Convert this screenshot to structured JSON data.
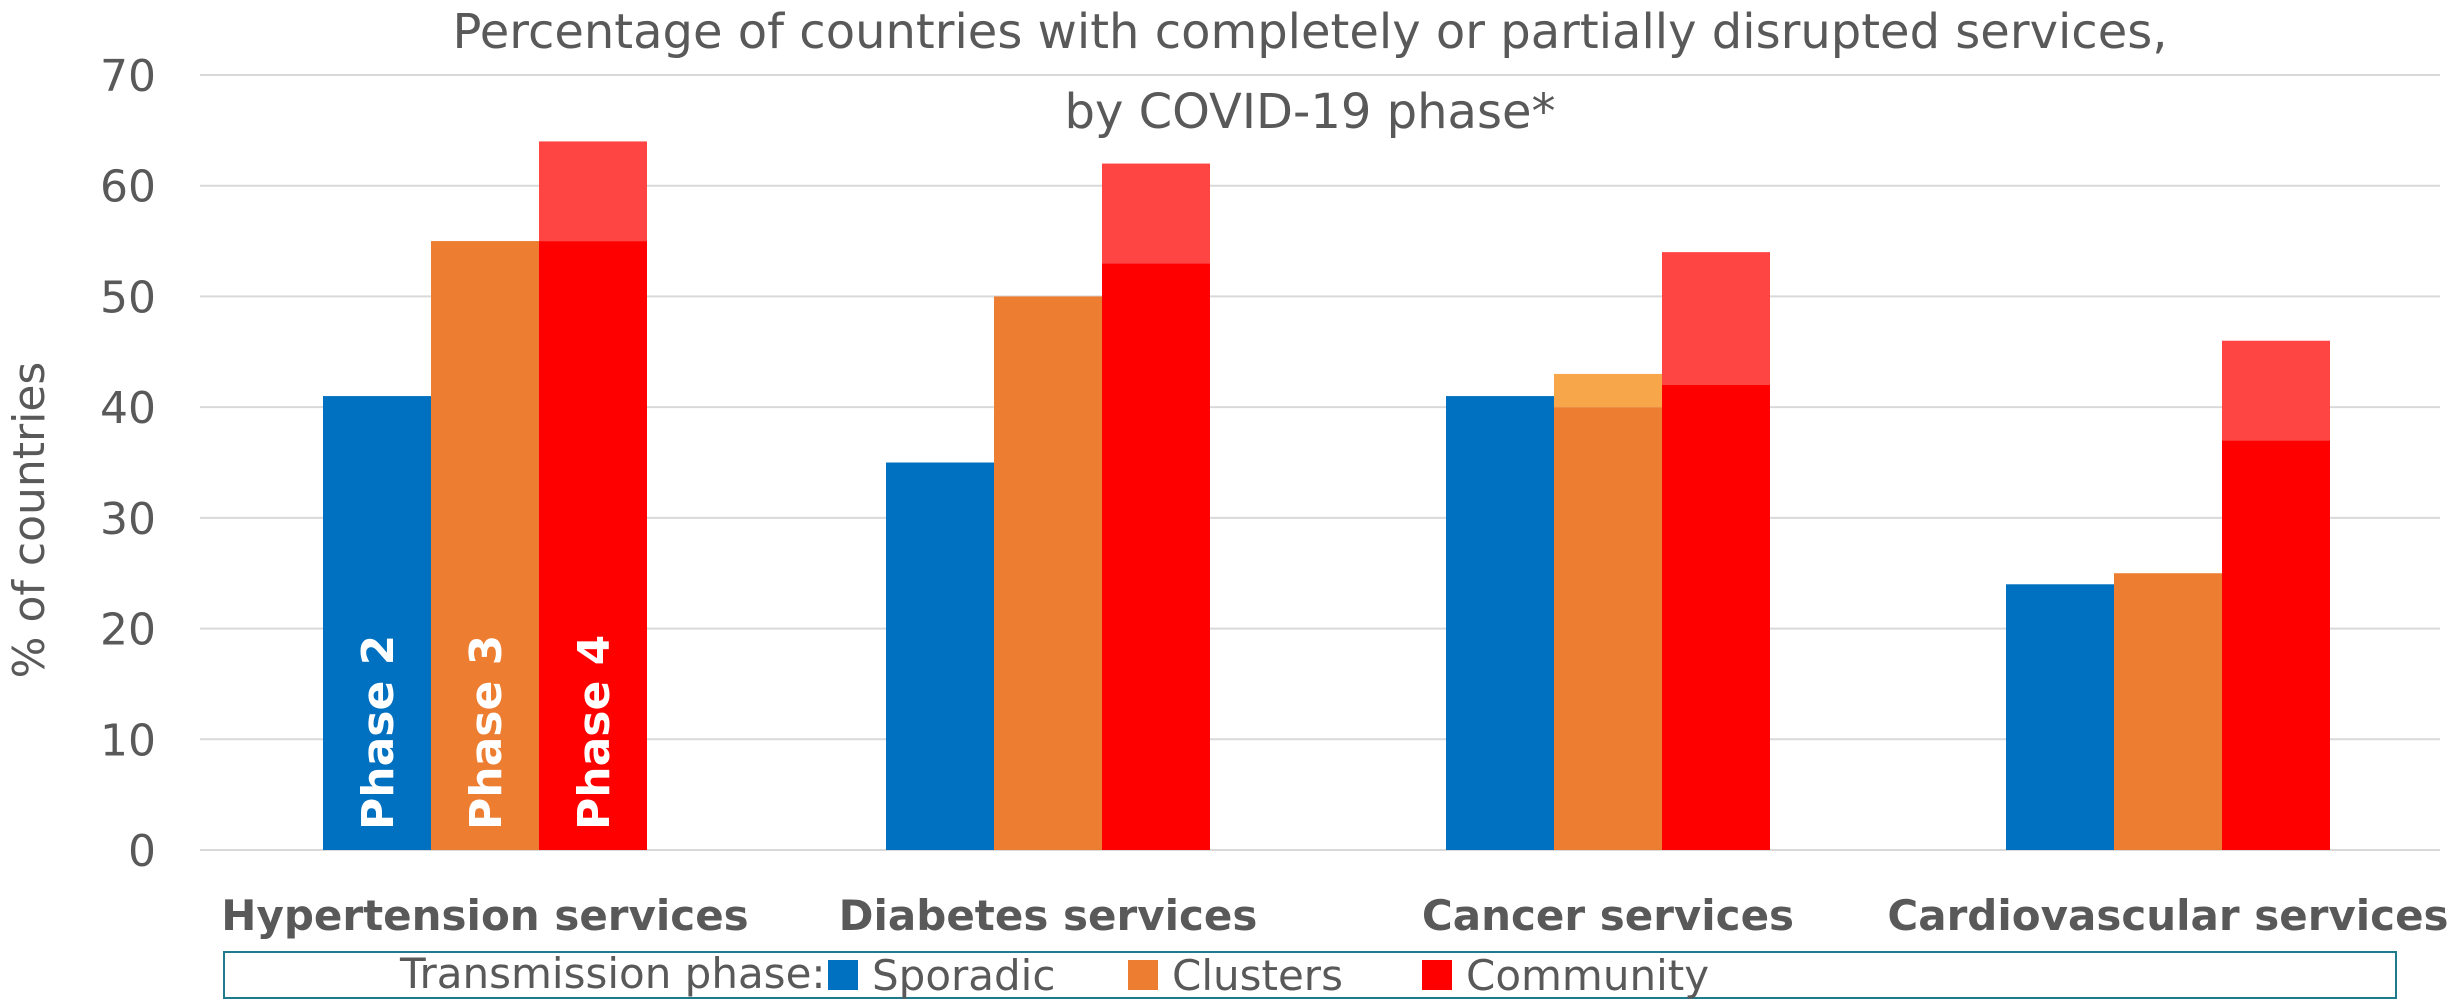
{
  "chart_data": {
    "type": "bar",
    "title_line1": "Percentage of countries with completely or partially disrupted services,",
    "title_line2": "by COVID-19 phase*",
    "ylabel": "% of countries",
    "xlabel": "",
    "ylim": [
      0,
      70
    ],
    "yticks": [
      0,
      10,
      20,
      30,
      40,
      50,
      60,
      70
    ],
    "grid": true,
    "categories": [
      "Hypertension services",
      "Diabetes services",
      "Cancer services",
      "Cardiovascular services"
    ],
    "series": [
      {
        "name": "Sporadic",
        "phase_label": "Phase 2",
        "color": "#0070C0",
        "light_color": "#0070C0",
        "values": [
          41,
          35,
          41,
          24
        ],
        "total_values": [
          41,
          35,
          41,
          24
        ]
      },
      {
        "name": "Clusters",
        "phase_label": "Phase 3",
        "color": "#ED7D31",
        "light_color": "#F7A64A",
        "values": [
          55,
          50,
          40,
          25
        ],
        "total_values": [
          55,
          50,
          43,
          25
        ]
      },
      {
        "name": "Community",
        "phase_label": "Phase 4",
        "color": "#FF0000",
        "light_color": "#FF4444",
        "values": [
          55,
          53,
          42,
          37
        ],
        "total_values": [
          64,
          62,
          54,
          46
        ]
      }
    ],
    "legend": {
      "title": "Transmission phase:",
      "placement": "bottom"
    }
  }
}
